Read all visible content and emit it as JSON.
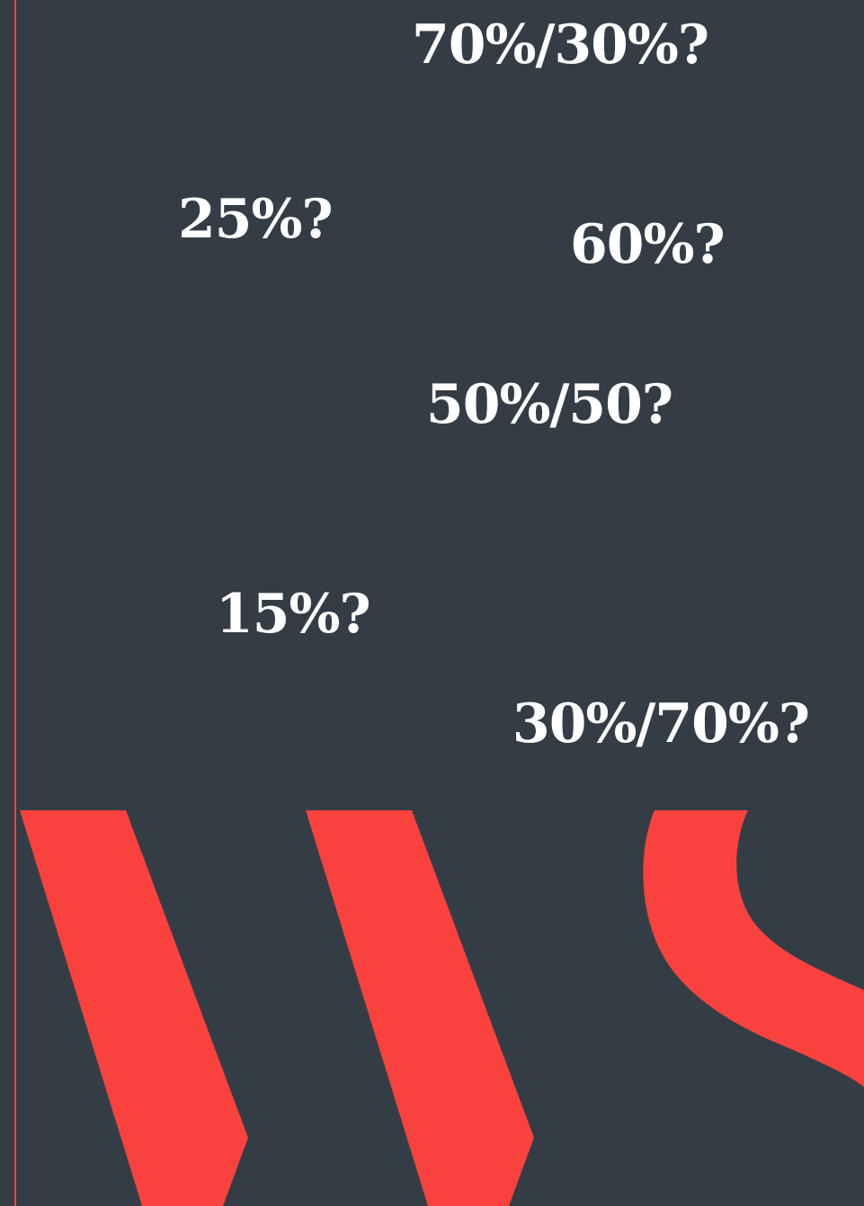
{
  "colors": {
    "background": "#343d46",
    "accent": "#f9423d",
    "text": "#ffffff"
  },
  "labels": {
    "ratio_70_30": "70%/30%?",
    "pct_25": "25%?",
    "pct_60": "60%?",
    "ratio_50_50": "50%/50?",
    "pct_15": "15%?",
    "ratio_30_70": "30%/70%?"
  }
}
